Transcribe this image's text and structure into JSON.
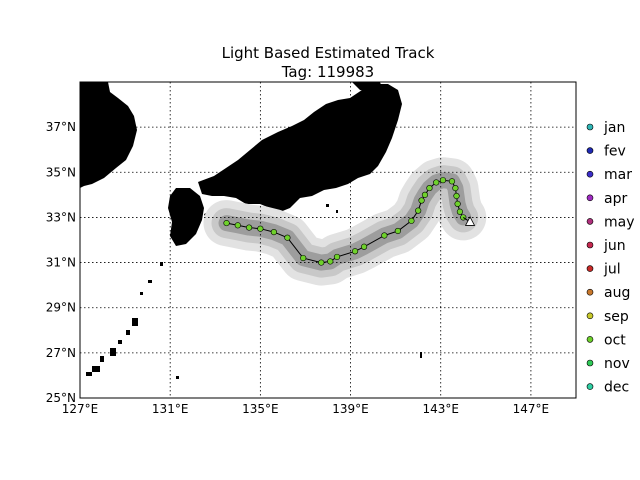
{
  "map": {
    "title": "Light Based Estimated Track",
    "subtitle": "Tag: 119983",
    "lon_range": [
      127,
      149
    ],
    "lat_range": [
      25,
      39
    ],
    "grid": true,
    "x_ticks": [
      "127°E",
      "131°E",
      "135°E",
      "139°E",
      "143°E",
      "147°E"
    ],
    "y_ticks": [
      "25°N",
      "27°N",
      "29°N",
      "31°N",
      "33°N",
      "35°N",
      "37°N"
    ],
    "legend_placement": "right",
    "legend": [
      {
        "label": "jan",
        "color": "#2fb6b6"
      },
      {
        "label": "fev",
        "color": "#1f2ab5"
      },
      {
        "label": "mar",
        "color": "#3b2ec8"
      },
      {
        "label": "apr",
        "color": "#a02bc2"
      },
      {
        "label": "may",
        "color": "#b0307d"
      },
      {
        "label": "jun",
        "color": "#c5284f"
      },
      {
        "label": "jul",
        "color": "#c82b28"
      },
      {
        "label": "aug",
        "color": "#c9782c"
      },
      {
        "label": "sep",
        "color": "#c8c92b"
      },
      {
        "label": "oct",
        "color": "#6ed02c"
      },
      {
        "label": "nov",
        "color": "#2fca57"
      },
      {
        "label": "dec",
        "color": "#2fcfa3"
      }
    ],
    "track_color": "#6fd12c",
    "end_marker": "white-triangle",
    "track": [
      {
        "lon": 133.5,
        "lat": 32.75
      },
      {
        "lon": 134.0,
        "lat": 32.65
      },
      {
        "lon": 134.5,
        "lat": 32.55
      },
      {
        "lon": 135.0,
        "lat": 32.5
      },
      {
        "lon": 135.6,
        "lat": 32.35
      },
      {
        "lon": 136.2,
        "lat": 32.1
      },
      {
        "lon": 136.9,
        "lat": 31.2
      },
      {
        "lon": 137.7,
        "lat": 31.0
      },
      {
        "lon": 138.1,
        "lat": 31.05
      },
      {
        "lon": 138.4,
        "lat": 31.25
      },
      {
        "lon": 139.2,
        "lat": 31.5
      },
      {
        "lon": 139.6,
        "lat": 31.7
      },
      {
        "lon": 140.5,
        "lat": 32.2
      },
      {
        "lon": 141.1,
        "lat": 32.4
      },
      {
        "lon": 141.7,
        "lat": 32.85
      },
      {
        "lon": 142.0,
        "lat": 33.3
      },
      {
        "lon": 142.15,
        "lat": 33.75
      },
      {
        "lon": 142.3,
        "lat": 34.0
      },
      {
        "lon": 142.5,
        "lat": 34.3
      },
      {
        "lon": 142.8,
        "lat": 34.55
      },
      {
        "lon": 143.1,
        "lat": 34.65
      },
      {
        "lon": 143.5,
        "lat": 34.6
      },
      {
        "lon": 143.65,
        "lat": 34.3
      },
      {
        "lon": 143.7,
        "lat": 33.95
      },
      {
        "lon": 143.75,
        "lat": 33.6
      },
      {
        "lon": 143.85,
        "lat": 33.25
      },
      {
        "lon": 144.0,
        "lat": 33.0
      }
    ],
    "track_end": {
      "lon": 144.3,
      "lat": 32.8
    }
  }
}
